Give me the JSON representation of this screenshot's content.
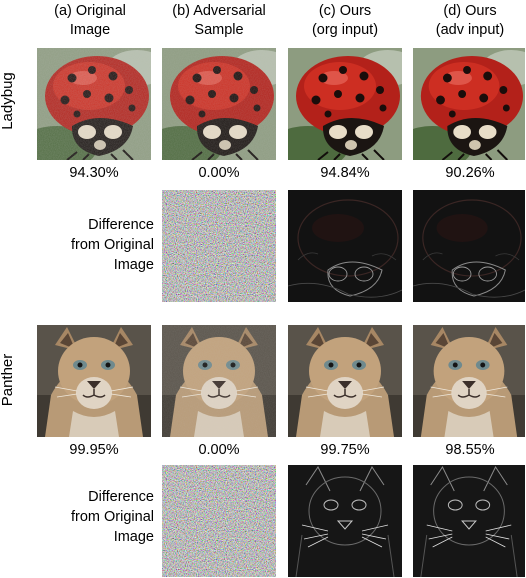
{
  "columns": [
    {
      "line1": "(a) Original",
      "line2": "Image"
    },
    {
      "line1": "(b) Adversarial",
      "line2": "Sample"
    },
    {
      "line1": "(c) Ours",
      "line2": "(org input)"
    },
    {
      "line1": "(d)  Ours",
      "line2": "(adv input)"
    }
  ],
  "rows": [
    {
      "label": "Ladybug",
      "scores": [
        "94.30%",
        "0.00%",
        "94.84%",
        "90.26%"
      ]
    },
    {
      "label": "Panther",
      "scores": [
        "99.95%",
        "0.00%",
        "99.75%",
        "98.55%"
      ]
    }
  ],
  "difference_label": {
    "line1": "Difference",
    "line2": "from Original",
    "line3": "Image"
  }
}
